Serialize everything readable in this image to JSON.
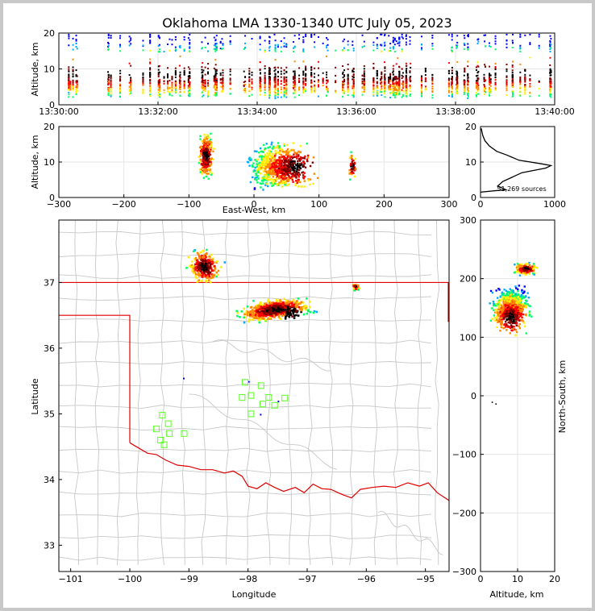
{
  "title": "Oklahoma LMA 1330-1340 UTC July 05, 2023",
  "colors": {
    "state_line": "#e00000",
    "county_line": "#c8c8c8",
    "station": "#66ff33",
    "density_scale": [
      "#0000ff",
      "#00aaff",
      "#00ff66",
      "#ffee00",
      "#ff8800",
      "#ff0000",
      "#800000",
      "#000000"
    ]
  },
  "chart_data": [
    {
      "id": "time_height",
      "type": "heatmap",
      "xlabel": "",
      "ylabel": "Altitude, km",
      "xlim": [
        "13:30:00",
        "13:40:00"
      ],
      "ylim": [
        0,
        20
      ],
      "x_ticks": [
        "13:30:00",
        "13:32:00",
        "13:34:00",
        "13:36:00",
        "13:38:00",
        "13:40:00"
      ],
      "y_ticks": [
        "0",
        "10",
        "20"
      ],
      "note_points": "vertical flash columns across the full 10-minute window, altitudes ~2-20 km"
    },
    {
      "id": "ew_height",
      "type": "heatmap",
      "xlabel": "East-West, km",
      "ylabel": "Altitude, km",
      "xlim": [
        -300,
        300
      ],
      "ylim": [
        0,
        20
      ],
      "x_ticks": [
        "−300",
        "−200",
        "−100",
        "0",
        "100",
        "200",
        "300"
      ],
      "y_ticks": [
        "0",
        "10",
        "20"
      ],
      "clusters": [
        {
          "x_range": [
            -90,
            -60
          ],
          "z_range": [
            3,
            20
          ],
          "peak_z": 12
        },
        {
          "x_range": [
            -10,
            110
          ],
          "z_range": [
            2,
            20
          ],
          "peak_x": 65,
          "peak_z": 9
        },
        {
          "x_range": [
            140,
            160
          ],
          "z_range": [
            5,
            14
          ]
        }
      ]
    },
    {
      "id": "altitude_histogram",
      "type": "line",
      "xlabel": "",
      "ylabel": "",
      "xlim": [
        0,
        1000
      ],
      "ylim": [
        0,
        20
      ],
      "x_ticks": [
        "0",
        "1000"
      ],
      "y_ticks": [
        "0",
        "10",
        "20"
      ],
      "annotation": "51,269 sources",
      "points": [
        [
          0,
          1.5
        ],
        [
          340,
          2.2
        ],
        [
          230,
          3.2
        ],
        [
          300,
          4.5
        ],
        [
          560,
          7.0
        ],
        [
          880,
          8.3
        ],
        [
          950,
          9.0
        ],
        [
          820,
          9.5
        ],
        [
          520,
          10.5
        ],
        [
          350,
          12.0
        ],
        [
          220,
          13.0
        ],
        [
          120,
          14.5
        ],
        [
          60,
          16.0
        ],
        [
          30,
          17.5
        ],
        [
          20,
          18.5
        ],
        [
          10,
          19.5
        ]
      ]
    },
    {
      "id": "plan_view",
      "type": "heatmap",
      "xlabel": "Longitude",
      "ylabel": "Latitude",
      "xlim": [
        -101.2,
        -94.6
      ],
      "ylim": [
        32.6,
        37.95
      ],
      "x_ticks": [
        "−101",
        "−100",
        "−99",
        "−98",
        "−97",
        "−96",
        "−95"
      ],
      "y_ticks": [
        "33",
        "34",
        "35",
        "36",
        "37"
      ],
      "clusters": [
        {
          "lon": -98.8,
          "lat": 37.25,
          "label": "northwest cell"
        },
        {
          "lon": -97.6,
          "lat": 36.6,
          "label": "main line"
        },
        {
          "lon": -96.2,
          "lat": 36.95,
          "label": "east cell"
        }
      ],
      "stations": [
        {
          "lon": -98.05,
          "lat": 35.48
        },
        {
          "lon": -97.78,
          "lat": 35.43
        },
        {
          "lon": -97.95,
          "lat": 35.28
        },
        {
          "lon": -98.1,
          "lat": 35.25
        },
        {
          "lon": -97.65,
          "lat": 35.25
        },
        {
          "lon": -97.38,
          "lat": 35.24
        },
        {
          "lon": -97.75,
          "lat": 35.15
        },
        {
          "lon": -97.55,
          "lat": 35.13
        },
        {
          "lon": -97.95,
          "lat": 35.0
        },
        {
          "lon": -99.45,
          "lat": 34.98
        },
        {
          "lon": -99.35,
          "lat": 34.85
        },
        {
          "lon": -99.55,
          "lat": 34.77
        },
        {
          "lon": -99.33,
          "lat": 34.7
        },
        {
          "lon": -99.08,
          "lat": 34.7
        },
        {
          "lon": -99.48,
          "lat": 34.6
        },
        {
          "lon": -99.42,
          "lat": 34.53
        }
      ]
    },
    {
      "id": "ns_height",
      "type": "heatmap",
      "xlabel": "Altitude, km",
      "ylabel": "North-South, km",
      "xlim": [
        0,
        20
      ],
      "ylim": [
        -300,
        300
      ],
      "x_ticks": [
        "0",
        "10",
        "20"
      ],
      "y_ticks": [
        "300",
        "200",
        "100",
        "0",
        "−100",
        "−200",
        "−300"
      ],
      "clusters": [
        {
          "ns_range": [
            100,
            245
          ],
          "z_range": [
            1,
            20
          ],
          "peak_ns": 135,
          "peak_z": 8
        },
        {
          "ns_range": [
            205,
            230
          ],
          "z_range": [
            9,
            15
          ],
          "peak_ns": 218,
          "peak_z": 12
        }
      ]
    }
  ]
}
